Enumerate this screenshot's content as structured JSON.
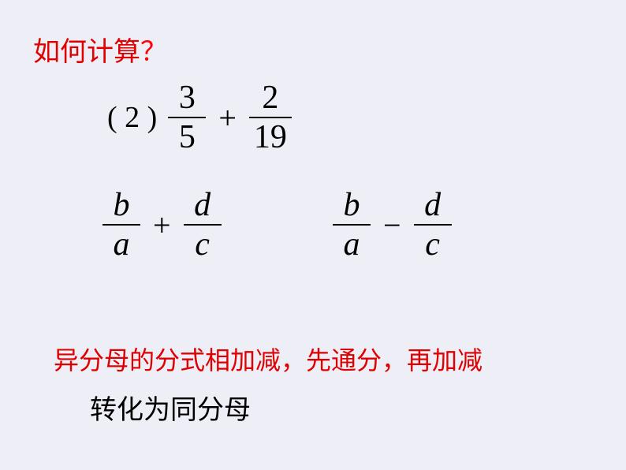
{
  "title": {
    "text": "如何计算",
    "question_mark": "？"
  },
  "equation1": {
    "label": "( 2 )",
    "frac1": {
      "num": "3",
      "den": "5"
    },
    "op": "+",
    "frac2": {
      "num": "2",
      "den": "19"
    }
  },
  "equation2": {
    "frac1": {
      "num": "b",
      "den": "a"
    },
    "op": "+",
    "frac2": {
      "num": "d",
      "den": "c"
    }
  },
  "equation3": {
    "frac1": {
      "num": "b",
      "den": "a"
    },
    "op": "−",
    "frac2": {
      "num": "d",
      "den": "c"
    }
  },
  "bottom1": "异分母的分式相加减，先通分，再加减",
  "bottom2": "转化为同分母",
  "colors": {
    "background": "#eeeef7",
    "red": "#e10000",
    "black": "#000000"
  }
}
